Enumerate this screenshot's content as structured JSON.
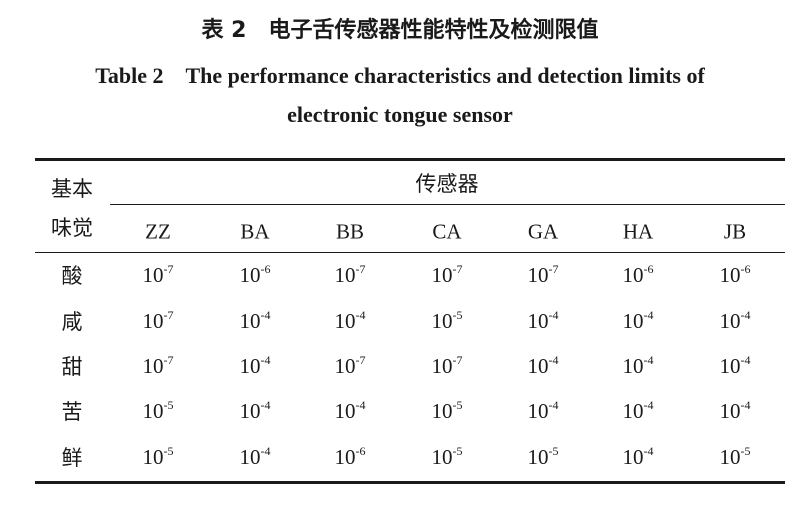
{
  "header": {
    "title_cn": "表 2　电子舌传感器性能特性及检测限值",
    "title_en": [
      "Table 2　The performance characteristics and detection limits of",
      "electronic tongue sensor"
    ]
  },
  "table": {
    "row_header": [
      "基本",
      "味觉"
    ],
    "group_header": "传感器",
    "columns": [
      "ZZ",
      "BA",
      "BB",
      "CA",
      "GA",
      "HA",
      "JB"
    ],
    "rows": [
      {
        "label": "酸",
        "cells": [
          {
            "base": "10",
            "exp": "-7"
          },
          {
            "base": "10",
            "exp": "-6"
          },
          {
            "base": "10",
            "exp": "-7"
          },
          {
            "base": "10",
            "exp": "-7"
          },
          {
            "base": "10",
            "exp": "-7"
          },
          {
            "base": "10",
            "exp": "-6"
          },
          {
            "base": "10",
            "exp": "-6"
          }
        ]
      },
      {
        "label": "咸",
        "cells": [
          {
            "base": "10",
            "exp": "-7"
          },
          {
            "base": "10",
            "exp": "-4"
          },
          {
            "base": "10",
            "exp": "-4"
          },
          {
            "base": "10",
            "exp": "-5"
          },
          {
            "base": "10",
            "exp": "-4"
          },
          {
            "base": "10",
            "exp": "-4"
          },
          {
            "base": "10",
            "exp": "-4"
          }
        ]
      },
      {
        "label": "甜",
        "cells": [
          {
            "base": "10",
            "exp": "-7"
          },
          {
            "base": "10",
            "exp": "-4"
          },
          {
            "base": "10",
            "exp": "-7"
          },
          {
            "base": "10",
            "exp": "-7"
          },
          {
            "base": "10",
            "exp": "-4"
          },
          {
            "base": "10",
            "exp": "-4"
          },
          {
            "base": "10",
            "exp": "-4"
          }
        ]
      },
      {
        "label": "苦",
        "cells": [
          {
            "base": "10",
            "exp": "-5"
          },
          {
            "base": "10",
            "exp": "-4"
          },
          {
            "base": "10",
            "exp": "-4"
          },
          {
            "base": "10",
            "exp": "-5"
          },
          {
            "base": "10",
            "exp": "-4"
          },
          {
            "base": "10",
            "exp": "-4"
          },
          {
            "base": "10",
            "exp": "-4"
          }
        ]
      },
      {
        "label": "鲜",
        "cells": [
          {
            "base": "10",
            "exp": "-5"
          },
          {
            "base": "10",
            "exp": "-4"
          },
          {
            "base": "10",
            "exp": "-6"
          },
          {
            "base": "10",
            "exp": "-5"
          },
          {
            "base": "10",
            "exp": "-5"
          },
          {
            "base": "10",
            "exp": "-4"
          },
          {
            "base": "10",
            "exp": "-5"
          }
        ]
      }
    ]
  }
}
